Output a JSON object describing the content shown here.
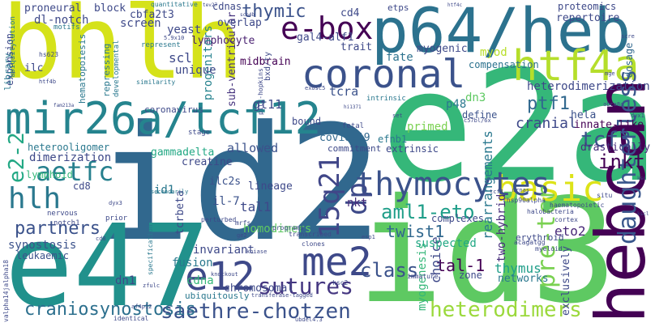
{
  "words": [
    {
      "text": "bhlh",
      "color": "#d5e21a"
    },
    {
      "text": "p64/heb",
      "color": "#2c728e"
    },
    {
      "text": "e2a",
      "color": "#35b779"
    },
    {
      "text": "id2",
      "color": "#31688e"
    },
    {
      "text": "id3",
      "color": "#5ec962"
    },
    {
      "text": "e47",
      "color": "#21918c"
    },
    {
      "text": "hebcan",
      "color": "#440154"
    },
    {
      "text": "mir26a/tcf12",
      "color": "#25848e"
    },
    {
      "text": "htf4a",
      "color": "#b5de2b"
    },
    {
      "text": "coronal",
      "color": "#3b528b"
    },
    {
      "text": "e-box",
      "color": "#440154"
    },
    {
      "text": "basic",
      "color": "#dde318"
    },
    {
      "text": "thymocytes",
      "color": "#3b528b"
    },
    {
      "text": "e12",
      "color": "#3e4989"
    },
    {
      "text": "me2",
      "color": "#3e4989"
    },
    {
      "text": "saethre-chotzen",
      "color": "#3b528b"
    },
    {
      "text": "sutures",
      "color": "#453781"
    },
    {
      "text": "heterodimers",
      "color": "#9bd93c"
    },
    {
      "text": "pre-tcr",
      "color": "#7ad151"
    },
    {
      "text": "daughterless",
      "color": "#39568c"
    },
    {
      "text": "hlh",
      "color": "#2a788e"
    },
    {
      "text": "aetfc",
      "color": "#27808e"
    },
    {
      "text": "15q21",
      "color": "#404688"
    },
    {
      "text": "dp",
      "color": "#3e4a89"
    },
    {
      "text": "aml1-eto",
      "color": "#1f9e89"
    },
    {
      "text": "craniosynostosis",
      "color": "#2d708e"
    },
    {
      "text": "e2-2",
      "color": "#22a884"
    },
    {
      "text": "class",
      "color": "#3b528b"
    },
    {
      "text": "partners",
      "color": "#3b528b"
    },
    {
      "text": "tcf3",
      "color": "#3b528b"
    },
    {
      "text": "twist1",
      "color": "#31688e"
    },
    {
      "text": "thymic",
      "color": "#3b528b"
    },
    {
      "text": "heterodimerization",
      "color": "#3e4989"
    },
    {
      "text": "ptf1",
      "color": "#31688e"
    },
    {
      "text": "cranial",
      "color": "#3e4989"
    },
    {
      "text": "inkt",
      "color": "#440154"
    },
    {
      "text": "rearrangements",
      "color": "#2a788e"
    },
    {
      "text": "two-hybrid",
      "color": "#472d7b"
    },
    {
      "text": "tal-1",
      "color": "#440154"
    },
    {
      "text": "choice",
      "color": "#3e4989"
    },
    {
      "text": "myogenesis",
      "color": "#35b779"
    },
    {
      "text": "eto2",
      "color": "#482878"
    },
    {
      "text": "lymphocyte",
      "color": "#481f70"
    },
    {
      "text": "progenitors",
      "color": "#26828e"
    },
    {
      "text": "sub-ventricular",
      "color": "#46337e"
    },
    {
      "text": "scl",
      "color": "#3e4989"
    },
    {
      "text": "midbrain",
      "color": "#440154"
    },
    {
      "text": "gal4-alf1",
      "color": "#3e4989"
    },
    {
      "text": "myogenic",
      "color": "#3e4989"
    },
    {
      "text": "compensation",
      "color": "#2c728e"
    },
    {
      "text": "fate",
      "color": "#2c728e"
    },
    {
      "text": "myod",
      "color": "#b8de29"
    },
    {
      "text": "dosage",
      "color": "#31688e"
    },
    {
      "text": "tcra",
      "color": "#3b528b"
    },
    {
      "text": "dn3",
      "color": "#5ec962"
    },
    {
      "text": "p48",
      "color": "#2a788e"
    },
    {
      "text": "define",
      "color": "#3b528b"
    },
    {
      "text": "hela",
      "color": "#3b528b"
    },
    {
      "text": "innate-like",
      "color": "#440154"
    },
    {
      "text": "drastically",
      "color": "#472d7b"
    },
    {
      "text": "primed",
      "color": "#7ad151"
    },
    {
      "text": "efnb1",
      "color": "#2a788e"
    },
    {
      "text": "extrinsic",
      "color": "#3e4989"
    },
    {
      "text": "covid-19",
      "color": "#31688e"
    },
    {
      "text": "allowed",
      "color": "#3b528b"
    },
    {
      "text": "gt11",
      "color": "#3e4989"
    },
    {
      "text": "creatine",
      "color": "#3e4989"
    },
    {
      "text": "gammadelta",
      "color": "#22a884"
    },
    {
      "text": "dimerization",
      "color": "#3e4989"
    },
    {
      "text": "heterooligomer",
      "color": "#2a788e"
    },
    {
      "text": "lymphoid",
      "color": "#35b779"
    },
    {
      "text": "cd8",
      "color": "#3e4989"
    },
    {
      "text": "ilc2s",
      "color": "#3b528b"
    },
    {
      "text": "il-7",
      "color": "#3b528b"
    },
    {
      "text": "lineage",
      "color": "#3e4989"
    },
    {
      "text": "nkt",
      "color": "#472d7b"
    },
    {
      "text": "tal1",
      "color": "#3e4989"
    },
    {
      "text": "homodimers",
      "color": "#5ec962"
    },
    {
      "text": "invariant",
      "color": "#3e4989"
    },
    {
      "text": "fusion",
      "color": "#2a788e"
    },
    {
      "text": "dn1",
      "color": "#3e4989"
    },
    {
      "text": "cdna",
      "color": "#35b779"
    },
    {
      "text": "chromosomal",
      "color": "#3e4989"
    },
    {
      "text": "id1",
      "color": "#2a788e"
    },
    {
      "text": "tcrbeta",
      "color": "#3e4989"
    },
    {
      "text": "synostosis",
      "color": "#3b528b"
    },
    {
      "text": "leukaemic",
      "color": "#3b528b"
    },
    {
      "text": "thymus",
      "color": "#1f9e89"
    },
    {
      "text": "networks",
      "color": "#2a788e"
    },
    {
      "text": "exclusively",
      "color": "#3e4989"
    },
    {
      "text": "suspected",
      "color": "#22a884"
    },
    {
      "text": "complexes",
      "color": "#3e4989"
    },
    {
      "text": "erythroid",
      "color": "#3e4989"
    },
    {
      "text": "zone",
      "color": "#3e4989"
    },
    {
      "text": "expansion",
      "color": "#3e4989"
    },
    {
      "text": "proneural",
      "color": "#3e4989"
    },
    {
      "text": "dl-notch",
      "color": "#3e4989"
    },
    {
      "text": "cbfa2t3",
      "color": "#3e4989"
    },
    {
      "text": "block",
      "color": "#3e4989"
    },
    {
      "text": "cdnas",
      "color": "#3e4989"
    },
    {
      "text": "cd4",
      "color": "#3e4989"
    },
    {
      "text": "etps",
      "color": "#3e4989"
    },
    {
      "text": "proteomics",
      "color": "#3e4989"
    },
    {
      "text": "repertoire",
      "color": "#3e4989"
    },
    {
      "text": "screen",
      "color": "#3e4989"
    },
    {
      "text": "yeast",
      "color": "#3e4989"
    },
    {
      "text": "unique",
      "color": "#3e4989"
    },
    {
      "text": "hematopoiesis",
      "color": "#2a788e"
    },
    {
      "text": "library",
      "color": "#2a788e"
    },
    {
      "text": "ilc",
      "color": "#3e4989"
    },
    {
      "text": "overlap",
      "color": "#3e4989"
    },
    {
      "text": "trait",
      "color": "#3e4989"
    },
    {
      "text": "repressing",
      "color": "#2a788e"
    },
    {
      "text": "coronavirus",
      "color": "#3e4989"
    },
    {
      "text": "bound",
      "color": "#3e4989"
    },
    {
      "text": "commitment",
      "color": "#3e4989"
    },
    {
      "text": "ubiquitously",
      "color": "#2a788e"
    },
    {
      "text": "quantitative",
      "color": "#2a788e"
    },
    {
      "text": "motifs",
      "color": "#2a788e"
    },
    {
      "text": "developmental",
      "color": "#2a788e"
    },
    {
      "text": "similarity",
      "color": "#2a788e"
    },
    {
      "text": "represent",
      "color": "#2a788e"
    },
    {
      "text": "5.9x10",
      "color": "#3e4989"
    },
    {
      "text": "bxd/ty",
      "color": "#3e4989"
    },
    {
      "text": "pitt-hopkins",
      "color": "#3e4989"
    },
    {
      "text": "intrinsic",
      "color": "#2a788e"
    },
    {
      "text": "fetal",
      "color": "#3e4989"
    },
    {
      "text": "exosc5",
      "color": "#3e4989"
    },
    {
      "text": "hs623",
      "color": "#3e4989"
    },
    {
      "text": "htf4b",
      "color": "#3e4989"
    },
    {
      "text": "ubiquitylation",
      "color": "#2a788e"
    },
    {
      "text": "stage",
      "color": "#3e4989"
    },
    {
      "text": "secondarily",
      "color": "#2a788e"
    },
    {
      "text": "rhsp90alpha",
      "color": "#3e4989"
    },
    {
      "text": "halobacteria",
      "color": "#3e4989"
    },
    {
      "text": "haematopoietic",
      "color": "#3e4989"
    },
    {
      "text": "situ",
      "color": "#3e4989"
    },
    {
      "text": "mrnas",
      "color": "#3e4989"
    },
    {
      "text": "tcf4",
      "color": "#3e4989"
    },
    {
      "text": "cortex",
      "color": "#3e4989"
    },
    {
      "text": "myeloid",
      "color": "#3e4989"
    },
    {
      "text": "acagatgg",
      "color": "#3e4989"
    },
    {
      "text": "transcribed",
      "color": "#3e4989"
    },
    {
      "text": "clones",
      "color": "#3e4989"
    },
    {
      "text": "programs",
      "color": "#3e4989"
    },
    {
      "text": "perturbed",
      "color": "#3e4989"
    },
    {
      "text": "mrfs",
      "color": "#3e4989"
    },
    {
      "text": "immature",
      "color": "#3e4989"
    },
    {
      "text": "transferase-tagged",
      "color": "#3e4989"
    },
    {
      "text": "knockout",
      "color": "#3e4989"
    },
    {
      "text": "identical",
      "color": "#3e4989"
    },
    {
      "text": "valpha14jalpha18",
      "color": "#3e4989"
    },
    {
      "text": "nervous",
      "color": "#3e4989"
    },
    {
      "text": "notch1",
      "color": "#3e4989"
    },
    {
      "text": "prior",
      "color": "#3e4989"
    },
    {
      "text": "specification",
      "color": "#2a788e"
    },
    {
      "text": "zfulc",
      "color": "#3e4989"
    },
    {
      "text": "af4p12",
      "color": "#3e4989"
    },
    {
      "text": "dyx3",
      "color": "#3e4989"
    },
    {
      "text": "cd8",
      "color": "#3e4989"
    },
    {
      "text": "ksc2",
      "color": "#3e4989"
    },
    {
      "text": "kniase",
      "color": "#3e4989"
    },
    {
      "text": "ge2",
      "color": "#3e4989"
    },
    {
      "text": "tev27",
      "color": "#3e4989"
    },
    {
      "text": "scn4b",
      "color": "#3e4989"
    },
    {
      "text": "htf4c",
      "color": "#3e4989"
    },
    {
      "text": "scre",
      "color": "#3e4989"
    },
    {
      "text": "mge",
      "color": "#3e4989"
    },
    {
      "text": "abca8a",
      "color": "#3e4989"
    },
    {
      "text": "c57bl/6x",
      "color": "#3e4989"
    },
    {
      "text": "hi1371",
      "color": "#3e4989"
    },
    {
      "text": "fam213a",
      "color": "#3e4989"
    },
    {
      "text": "dyx1",
      "color": "#3e4989"
    },
    {
      "text": "ubdel4.3",
      "color": "#3e4989"
    },
    {
      "text": "kscl",
      "color": "#3e4989"
    },
    {
      "text": "esp1",
      "color": "#3e4989"
    },
    {
      "text": "set",
      "color": "#3e4989"
    },
    {
      "text": "ksc",
      "color": "#3e4989"
    }
  ]
}
